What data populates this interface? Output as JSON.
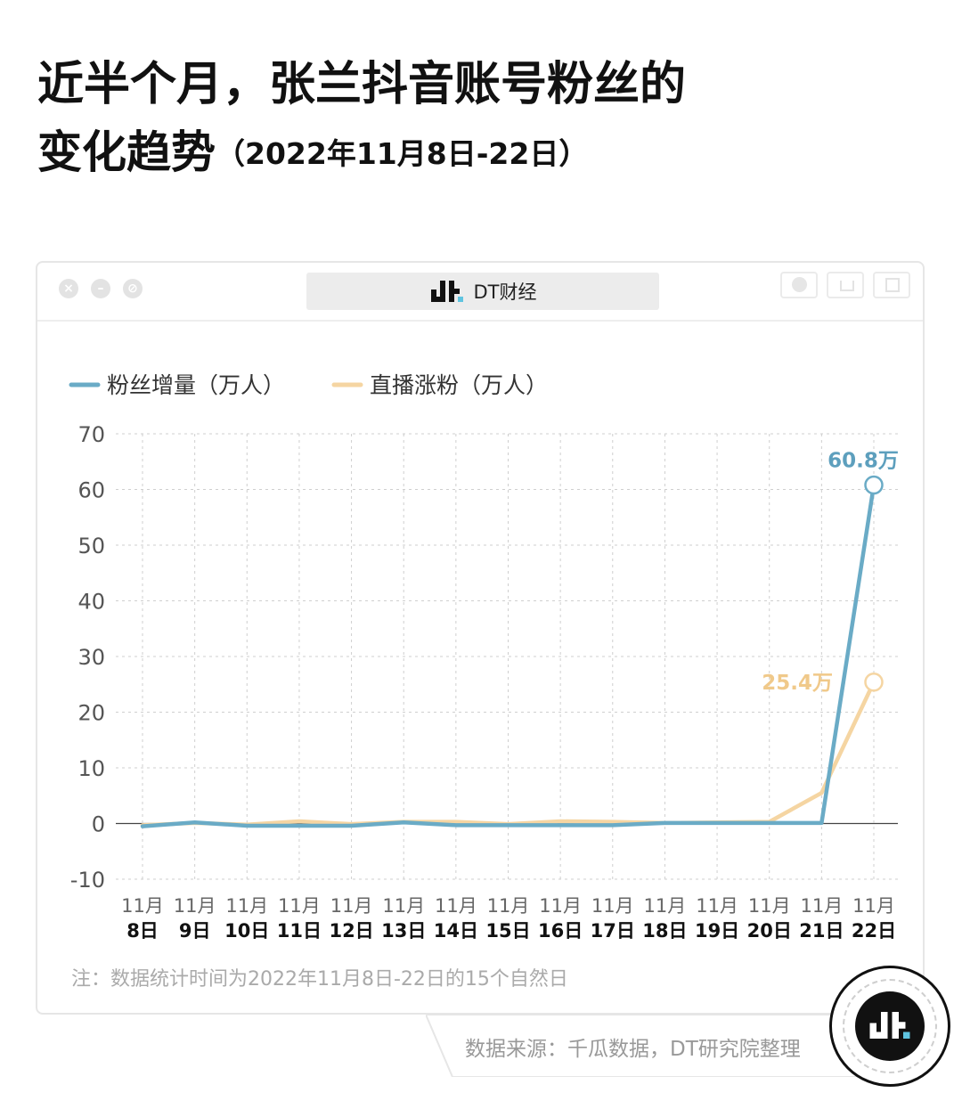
{
  "header": {
    "title_line1": "近半个月，张兰抖音账号粉丝的",
    "title_line2_main": "变化趋势",
    "title_line2_sub": "（2022年11月8日-22日）"
  },
  "window": {
    "brand_name": "DT财经",
    "controls": [
      "close-icon",
      "minimize-icon",
      "forbid-icon"
    ],
    "buttons": [
      "record-icon",
      "share-icon",
      "copy-icon"
    ]
  },
  "chart_data": {
    "type": "line",
    "title": "",
    "xlabel": "",
    "ylabel": "",
    "ylim": [
      -10,
      70
    ],
    "yticks": [
      70,
      60,
      50,
      40,
      30,
      20,
      10,
      0,
      -10
    ],
    "grid": true,
    "legend_position": "top-left",
    "x_month": "11月",
    "categories": [
      "8日",
      "9日",
      "10日",
      "11日",
      "12日",
      "13日",
      "14日",
      "15日",
      "16日",
      "17日",
      "18日",
      "19日",
      "20日",
      "21日",
      "22日"
    ],
    "series": [
      {
        "name": "粉丝增量（万人）",
        "color": "#6aabc6",
        "values": [
          -0.5,
          0.2,
          -0.4,
          -0.4,
          -0.4,
          0.2,
          -0.3,
          -0.3,
          -0.3,
          -0.3,
          0.1,
          0.1,
          0.1,
          0.1,
          60.8
        ],
        "end_label": "60.8万"
      },
      {
        "name": "直播涨粉（万人）",
        "color": "#f5d5a2",
        "values": [
          -0.3,
          0.1,
          -0.2,
          0.4,
          -0.1,
          0.3,
          0.3,
          -0.1,
          0.4,
          0.3,
          0.1,
          0.2,
          0.3,
          5.5,
          25.4
        ],
        "end_label": "25.4万"
      }
    ]
  },
  "footnote": "注：数据统计时间为2022年11月8日-22日的15个自然日",
  "source": "数据来源：千瓜数据，DT研究院整理",
  "badge_icon": "dt-logo-icon"
}
